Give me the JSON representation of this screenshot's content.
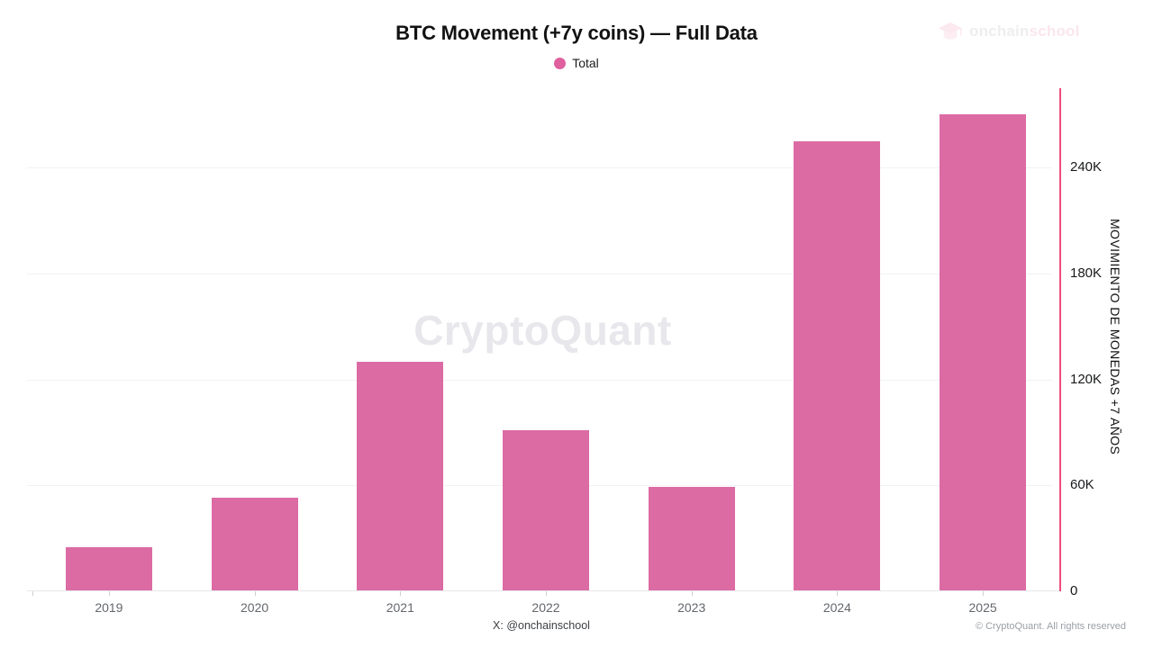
{
  "header": {
    "title": "BTC Movement (+7y coins) — Full Data",
    "legend": {
      "label": "Total",
      "color": "#e0609f"
    },
    "brand": {
      "icon": "graduation-cap-icon",
      "name_primary": "onchain",
      "name_secondary": "school"
    }
  },
  "chart_data": {
    "type": "bar",
    "title": "BTC Movement (+7y coins) — Full Data",
    "categories": [
      "2019",
      "2020",
      "2021",
      "2022",
      "2023",
      "2024",
      "2025"
    ],
    "series": [
      {
        "name": "Total",
        "color": "#dc6ba4",
        "values": [
          25000,
          53000,
          130000,
          91000,
          59000,
          255000,
          270000
        ]
      }
    ],
    "xlabel": "",
    "ylabel": "MOVIMIENTO DE MONEDAS +7 AÑOS",
    "y_ticks": [
      "0",
      "60K",
      "120K",
      "180K",
      "240K"
    ],
    "y_tick_values": [
      0,
      60000,
      120000,
      180000,
      240000
    ],
    "ylim": [
      0,
      284500
    ],
    "y_axis_side": "right",
    "axis_line_color": "#ef4c7d",
    "grid": true,
    "legend_position": "top",
    "watermark": "CryptoQuant"
  },
  "footer": {
    "credit": "X: @onchainschool",
    "copyright": "© CryptoQuant. All rights reserved"
  }
}
